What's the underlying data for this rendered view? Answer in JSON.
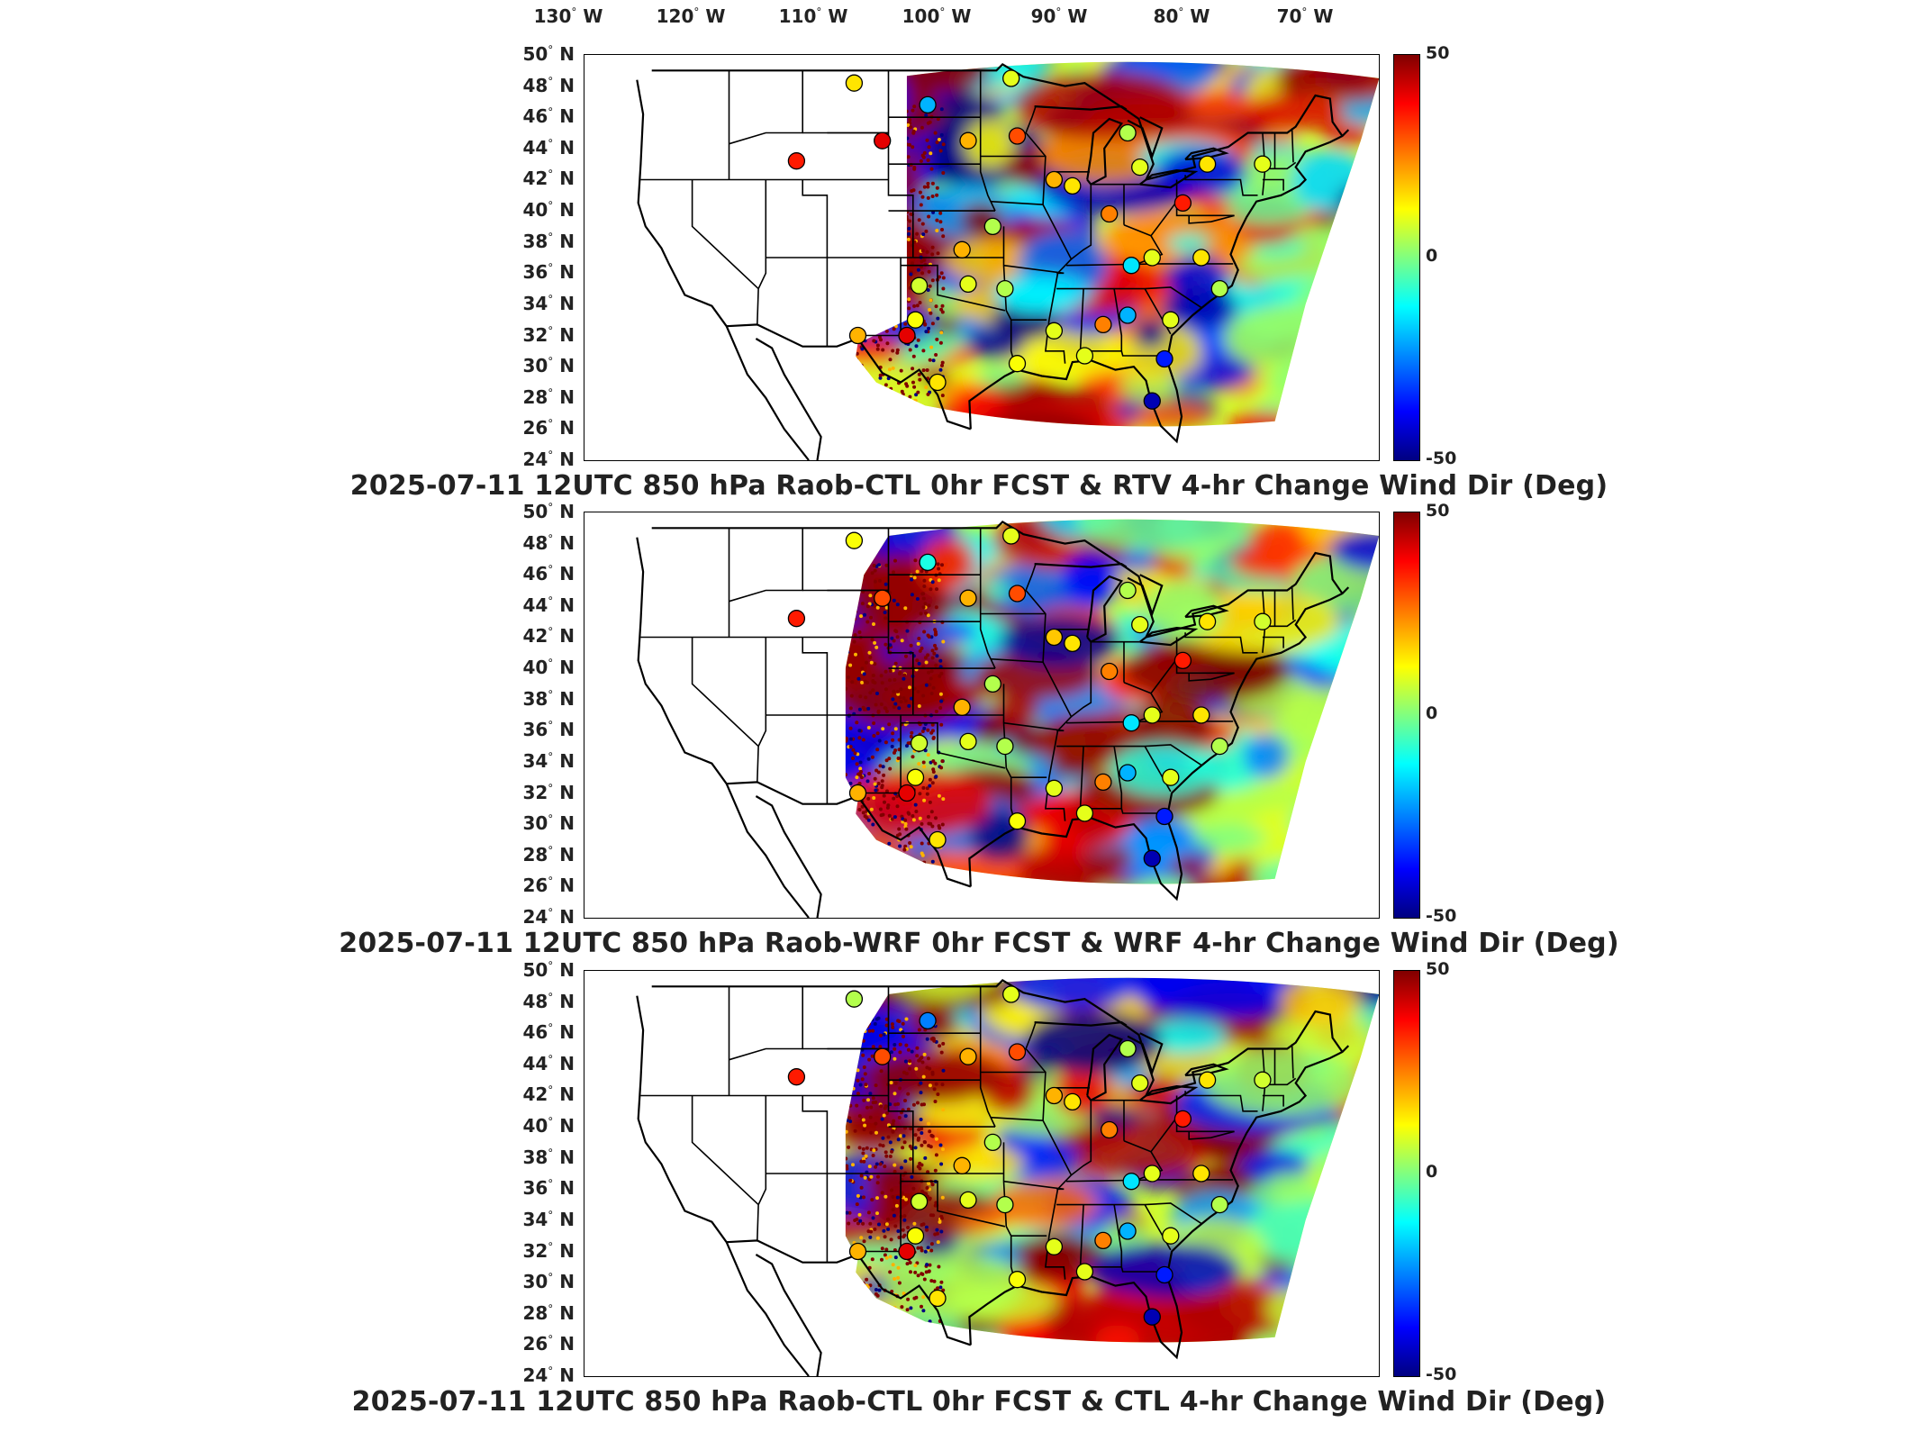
{
  "longitude_labels": [
    {
      "deg": "130",
      "hemi": "W"
    },
    {
      "deg": "120",
      "hemi": "W"
    },
    {
      "deg": "110",
      "hemi": "W"
    },
    {
      "deg": "100",
      "hemi": "W"
    },
    {
      "deg": "90",
      "hemi": "W"
    },
    {
      "deg": "80",
      "hemi": "W"
    },
    {
      "deg": "70",
      "hemi": "W"
    }
  ],
  "latitude_labels": [
    {
      "deg": "50",
      "hemi": "N"
    },
    {
      "deg": "48",
      "hemi": "N"
    },
    {
      "deg": "46",
      "hemi": "N"
    },
    {
      "deg": "44",
      "hemi": "N"
    },
    {
      "deg": "42",
      "hemi": "N"
    },
    {
      "deg": "40",
      "hemi": "N"
    },
    {
      "deg": "38",
      "hemi": "N"
    },
    {
      "deg": "36",
      "hemi": "N"
    },
    {
      "deg": "34",
      "hemi": "N"
    },
    {
      "deg": "32",
      "hemi": "N"
    },
    {
      "deg": "30",
      "hemi": "N"
    },
    {
      "deg": "28",
      "hemi": "N"
    },
    {
      "deg": "26",
      "hemi": "N"
    },
    {
      "deg": "24",
      "hemi": "N"
    }
  ],
  "colorbar": {
    "max_label": "50",
    "mid_label": "0",
    "min_label": "-50",
    "colormap": "jet",
    "range": [
      -50,
      50
    ]
  },
  "panels": [
    {
      "title": "2025-07-11 12UTC 850 hPa Raob-CTL 0hr FCST & RTV 4-hr Change Wind Dir (Deg)"
    },
    {
      "title": "2025-07-11 12UTC 850 hPa Raob-WRF 0hr FCST & WRF 4-hr Change Wind Dir (Deg)"
    },
    {
      "title": "2025-07-11 12UTC 850 hPa Raob-CTL 0hr FCST & CTL 4-hr Change Wind Dir (Deg)"
    }
  ],
  "stations": [
    {
      "lon": -106.8,
      "lat": 48.2,
      "v": [
        15,
        12,
        5
      ]
    },
    {
      "lon": -100.8,
      "lat": 46.8,
      "v": [
        -20,
        -10,
        -25
      ]
    },
    {
      "lon": -104.5,
      "lat": 44.5,
      "v": [
        40,
        30,
        30
      ]
    },
    {
      "lon": -111.5,
      "lat": 43.2,
      "v": [
        35,
        35,
        35
      ]
    },
    {
      "lon": -97.5,
      "lat": 44.5,
      "v": [
        20,
        20,
        20
      ]
    },
    {
      "lon": -93.5,
      "lat": 44.8,
      "v": [
        30,
        30,
        30
      ]
    },
    {
      "lon": -84.5,
      "lat": 45.0,
      "v": [
        5,
        5,
        5
      ]
    },
    {
      "lon": -83.5,
      "lat": 42.8,
      "v": [
        10,
        10,
        10
      ]
    },
    {
      "lon": -89.0,
      "lat": 41.6,
      "v": [
        15,
        15,
        15
      ]
    },
    {
      "lon": -90.5,
      "lat": 42.0,
      "v": [
        20,
        18,
        20
      ]
    },
    {
      "lon": -78.0,
      "lat": 43.0,
      "v": [
        15,
        15,
        15
      ]
    },
    {
      "lon": -73.5,
      "lat": 43.0,
      "v": [
        10,
        8,
        8
      ]
    },
    {
      "lon": -80.0,
      "lat": 40.5,
      "v": [
        35,
        35,
        35
      ]
    },
    {
      "lon": -95.5,
      "lat": 39.0,
      "v": [
        5,
        5,
        5
      ]
    },
    {
      "lon": -98.0,
      "lat": 37.5,
      "v": [
        20,
        20,
        20
      ]
    },
    {
      "lon": -86.0,
      "lat": 39.8,
      "v": [
        25,
        25,
        25
      ]
    },
    {
      "lon": -82.5,
      "lat": 37.0,
      "v": [
        10,
        10,
        10
      ]
    },
    {
      "lon": -78.5,
      "lat": 37.0,
      "v": [
        15,
        15,
        15
      ]
    },
    {
      "lon": -84.2,
      "lat": 36.5,
      "v": [
        -15,
        -15,
        -15
      ]
    },
    {
      "lon": -94.5,
      "lat": 35.0,
      "v": [
        5,
        5,
        5
      ]
    },
    {
      "lon": -97.5,
      "lat": 35.3,
      "v": [
        10,
        10,
        10
      ]
    },
    {
      "lon": -101.5,
      "lat": 35.2,
      "v": [
        8,
        8,
        8
      ]
    },
    {
      "lon": -101.8,
      "lat": 33.0,
      "v": [
        12,
        12,
        12
      ]
    },
    {
      "lon": -106.5,
      "lat": 32.0,
      "v": [
        20,
        20,
        20
      ]
    },
    {
      "lon": -102.5,
      "lat": 32.0,
      "v": [
        40,
        40,
        40
      ]
    },
    {
      "lon": -90.5,
      "lat": 32.3,
      "v": [
        10,
        10,
        10
      ]
    },
    {
      "lon": -86.5,
      "lat": 32.7,
      "v": [
        25,
        25,
        25
      ]
    },
    {
      "lon": -84.5,
      "lat": 33.3,
      "v": [
        -20,
        -20,
        -20
      ]
    },
    {
      "lon": -81.0,
      "lat": 33.0,
      "v": [
        10,
        10,
        10
      ]
    },
    {
      "lon": -77.0,
      "lat": 35.0,
      "v": [
        5,
        5,
        5
      ]
    },
    {
      "lon": -81.5,
      "lat": 30.5,
      "v": [
        -35,
        -35,
        -35
      ]
    },
    {
      "lon": -82.5,
      "lat": 27.8,
      "v": [
        -45,
        -45,
        -45
      ]
    },
    {
      "lon": -100.0,
      "lat": 29.0,
      "v": [
        15,
        15,
        15
      ]
    },
    {
      "lon": -93.5,
      "lat": 30.2,
      "v": [
        12,
        12,
        12
      ]
    },
    {
      "lon": -88.0,
      "lat": 30.7,
      "v": [
        10,
        10,
        10
      ]
    },
    {
      "lon": -94.0,
      "lat": 48.5,
      "v": [
        10,
        10,
        10
      ]
    }
  ]
}
